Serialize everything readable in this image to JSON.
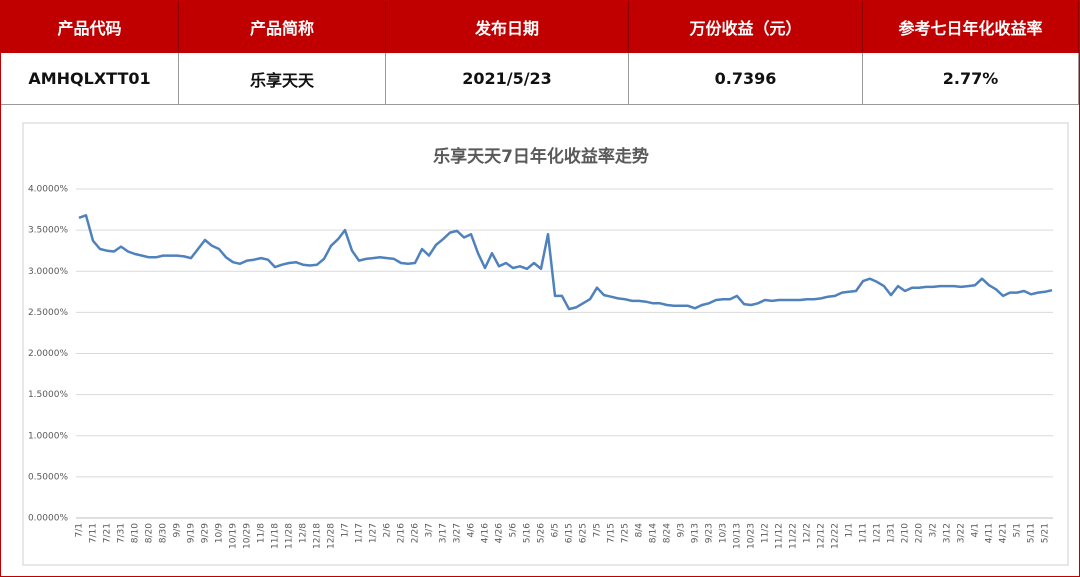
{
  "table": {
    "headers": [
      "产品代码",
      "产品简称",
      "发布日期",
      "万份收益（元）",
      "参考七日年化收益率"
    ],
    "rows": [
      [
        "AMHQLXTT01",
        "乐享天天",
        "2021/5/23",
        "0.7396",
        "2.77%"
      ]
    ]
  },
  "chart_data": {
    "type": "line",
    "title": "乐享天天7日年化收益率走势",
    "color": "#4f81bd",
    "grid": true,
    "categories": [
      "7/1",
      null,
      "7/11",
      null,
      "7/21",
      null,
      "7/31",
      null,
      "8/10",
      null,
      "8/20",
      null,
      "8/30",
      null,
      "9/9",
      null,
      "9/19",
      null,
      "9/29",
      null,
      "10/9",
      null,
      "10/19",
      null,
      "10/29",
      null,
      "11/8",
      null,
      "11/18",
      null,
      "11/28",
      null,
      "12/8",
      null,
      "12/18",
      null,
      "12/28",
      null,
      "1/7",
      null,
      "1/17",
      null,
      "1/27",
      null,
      "2/6",
      null,
      "2/16",
      null,
      "2/26",
      null,
      "3/7",
      null,
      "3/17",
      null,
      "3/27",
      null,
      "4/6",
      null,
      "4/16",
      null,
      "4/26",
      null,
      "5/6",
      null,
      "5/16",
      null,
      "5/26",
      null,
      "6/5",
      null,
      "6/15",
      null,
      "6/25",
      null,
      "7/5",
      null,
      "7/15",
      null,
      "7/25",
      null,
      "8/4",
      null,
      "8/14",
      null,
      "8/24",
      null,
      "9/3",
      null,
      "9/13",
      null,
      "9/23",
      null,
      "10/3",
      null,
      "10/13",
      null,
      "10/23",
      null,
      "11/2",
      null,
      "11/12",
      null,
      "11/22",
      null,
      "12/2",
      null,
      "12/12",
      null,
      "12/22",
      null,
      "1/1",
      null,
      "1/11",
      null,
      "1/21",
      null,
      "1/31",
      null,
      "2/10",
      null,
      "2/20",
      null,
      "3/2",
      null,
      "3/12",
      null,
      "3/22",
      null,
      "4/1",
      null,
      "4/11",
      null,
      "4/21",
      null,
      "5/1",
      null,
      "5/11",
      null,
      "5/21",
      null
    ],
    "values": [
      3.65,
      3.68,
      3.37,
      3.27,
      3.25,
      3.24,
      3.3,
      3.24,
      3.21,
      3.19,
      3.17,
      3.17,
      3.19,
      3.19,
      3.19,
      3.18,
      3.16,
      3.27,
      3.38,
      3.31,
      3.27,
      3.17,
      3.11,
      3.09,
      3.13,
      3.14,
      3.16,
      3.14,
      3.05,
      3.08,
      3.1,
      3.11,
      3.08,
      3.07,
      3.08,
      3.15,
      3.31,
      3.39,
      3.5,
      3.25,
      3.13,
      3.15,
      3.16,
      3.17,
      3.16,
      3.15,
      3.1,
      3.09,
      3.1,
      3.27,
      3.19,
      3.32,
      3.39,
      3.47,
      3.49,
      3.41,
      3.45,
      3.22,
      3.04,
      3.22,
      3.06,
      3.1,
      3.04,
      3.06,
      3.03,
      3.1,
      3.03,
      3.45,
      2.7,
      2.7,
      2.54,
      2.56,
      2.61,
      2.66,
      2.8,
      2.71,
      2.69,
      2.67,
      2.66,
      2.64,
      2.64,
      2.63,
      2.61,
      2.61,
      2.59,
      2.58,
      2.58,
      2.58,
      2.55,
      2.59,
      2.61,
      2.65,
      2.66,
      2.66,
      2.7,
      2.6,
      2.59,
      2.61,
      2.65,
      2.64,
      2.65,
      2.65,
      2.65,
      2.65,
      2.66,
      2.66,
      2.67,
      2.69,
      2.7,
      2.74,
      2.75,
      2.76,
      2.88,
      2.91,
      2.87,
      2.82,
      2.71,
      2.82,
      2.76,
      2.8,
      2.8,
      2.81,
      2.81,
      2.82,
      2.82,
      2.82,
      2.81,
      2.82,
      2.83,
      2.91,
      2.83,
      2.78,
      2.7,
      2.74,
      2.74,
      2.76,
      2.72,
      2.74,
      2.75,
      2.77
    ],
    "ylim": [
      0,
      4
    ],
    "yticks": [
      {
        "value": 0,
        "label": "0.0000%"
      },
      {
        "value": 0.5,
        "label": "0.5000%"
      },
      {
        "value": 1,
        "label": "1.0000%"
      },
      {
        "value": 1.5,
        "label": "1.5000%"
      },
      {
        "value": 2,
        "label": "2.0000%"
      },
      {
        "value": 2.5,
        "label": "2.5000%"
      },
      {
        "value": 3,
        "label": "3.0000%"
      },
      {
        "value": 3.5,
        "label": "3.5000%"
      },
      {
        "value": 4,
        "label": "4.0000%"
      }
    ]
  }
}
